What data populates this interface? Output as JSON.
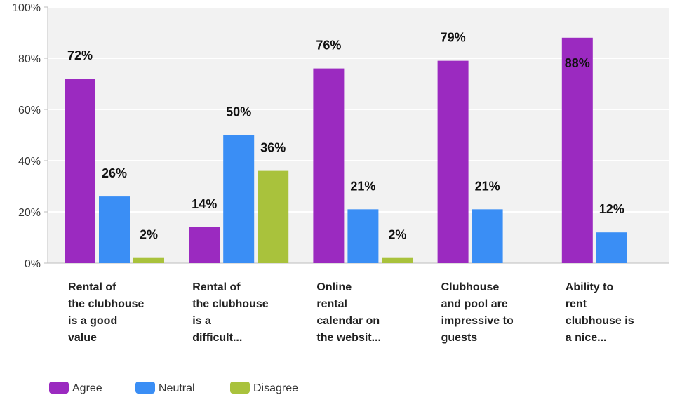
{
  "chart_data": {
    "type": "bar",
    "categories": [
      [
        "Rental of",
        "the clubhouse",
        "is a good",
        "value"
      ],
      [
        "Rental of",
        "the clubhouse",
        "is a",
        "difficult..."
      ],
      [
        "Online",
        "rental",
        "calendar on",
        "the websit..."
      ],
      [
        "Clubhouse",
        "and pool are",
        "impressive to",
        "guests"
      ],
      [
        "Ability to",
        "rent",
        "clubhouse is",
        "a nice..."
      ]
    ],
    "series": [
      {
        "name": "Agree",
        "color": "#9b2ac0",
        "values": [
          72,
          14,
          76,
          79,
          88
        ],
        "labels": [
          "72%",
          "14%",
          "76%",
          "79%",
          "88%"
        ]
      },
      {
        "name": "Neutral",
        "color": "#3a8ef5",
        "values": [
          26,
          50,
          21,
          21,
          12
        ],
        "labels": [
          "26%",
          "50%",
          "21%",
          "21%",
          "12%"
        ]
      },
      {
        "name": "Disagree",
        "color": "#a9c23c",
        "values": [
          2,
          36,
          2,
          0,
          0
        ],
        "labels": [
          "2%",
          "36%",
          "2%",
          "",
          ""
        ]
      }
    ],
    "ylim": [
      0,
      100
    ],
    "yticks": [
      0,
      20,
      40,
      60,
      80,
      100
    ],
    "ytick_labels": [
      "0%",
      "20%",
      "40%",
      "60%",
      "80%",
      "100%"
    ],
    "grid": true,
    "legend_position": "bottom-left"
  }
}
